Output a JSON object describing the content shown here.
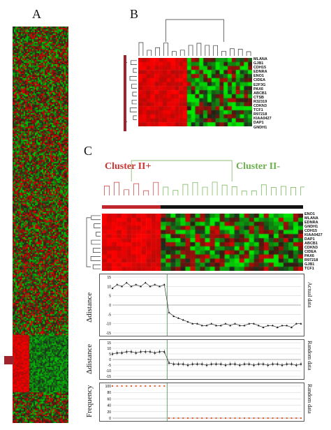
{
  "panels": {
    "a": "A",
    "b": "B",
    "c": "C"
  },
  "colors": {
    "red": "#d9262b",
    "green": "#44b244",
    "black": "#111111",
    "marker": "#a0232b",
    "cluster_pos": "#cc3333",
    "cluster_neg": "#6ab04c",
    "point_random": "#e85c2a"
  },
  "panel_b": {
    "genes": [
      "MLANA",
      "GJB1",
      "CDH15",
      "EDNRA",
      "ENO1",
      "CIDEA",
      "E2F3G",
      "PAX6",
      "ABCB1",
      "CTSB",
      "R32319",
      "CDKN3",
      "TCF1",
      "R97218",
      "KIAA0427",
      "DAP1",
      "GNDH1"
    ]
  },
  "panel_c": {
    "cluster_pos_label": "Cluster II+",
    "cluster_neg_label": "Cluster II-",
    "genes": [
      "ENO1",
      "MLANA",
      "EDNRA",
      "GNDH1",
      "CDH15",
      "KIAA0427",
      "DAP1",
      "ABCB1",
      "CDKN3",
      "CIDEA",
      "PAX6",
      "R97218",
      "GJB1",
      "TCF1"
    ]
  },
  "chart_data": [
    {
      "type": "line",
      "title": "",
      "ylabel": "Δdistance",
      "right_label": "Actual data",
      "ylim": [
        -15,
        15
      ],
      "yticks": [
        15,
        10,
        5,
        0,
        -5,
        -10,
        -15
      ],
      "series": [
        {
          "values": [
            9,
            11,
            10,
            12,
            10,
            11,
            10,
            12,
            10,
            11,
            10,
            11,
            -4,
            -6,
            -7,
            -8,
            -9,
            -10,
            -10,
            -11,
            -11,
            -10,
            -11,
            -11,
            -10,
            -11,
            -10,
            -11,
            -11,
            -10,
            -10,
            -11,
            -12,
            -11,
            -11,
            -12,
            -11,
            -11,
            -12,
            -10,
            -10
          ]
        }
      ]
    },
    {
      "type": "line",
      "title": "",
      "ylabel": "Δdistance",
      "right_label": "Random data",
      "ylim": [
        -15,
        15
      ],
      "yticks": [
        15,
        10,
        5,
        0,
        -5,
        -10,
        -15
      ],
      "series": [
        {
          "values": [
            5,
            6,
            6,
            7,
            7,
            6,
            7,
            7,
            7,
            6,
            7,
            7,
            -3,
            -4,
            -4,
            -4,
            -5,
            -4,
            -4,
            -4,
            -5,
            -4,
            -4,
            -4,
            -5,
            -4,
            -4,
            -5,
            -4,
            -4,
            -5,
            -4,
            -4,
            -5,
            -4,
            -4,
            -5,
            -4,
            -4,
            -5,
            -4
          ]
        }
      ]
    },
    {
      "type": "scatter",
      "title": "",
      "ylabel": "Frequency",
      "right_label": "Random data",
      "ylim": [
        0,
        100
      ],
      "yticks": [
        100,
        80,
        60,
        40,
        20,
        0
      ],
      "series": [
        {
          "values": [
            100,
            100,
            100,
            100,
            100,
            100,
            100,
            100,
            100,
            100,
            100,
            100,
            0,
            0,
            0,
            0,
            0,
            0,
            0,
            0,
            0,
            0,
            0,
            0,
            0,
            0,
            0,
            0,
            0,
            0,
            0,
            0,
            0,
            0,
            0,
            0,
            0,
            0,
            0,
            0,
            0
          ]
        }
      ]
    }
  ]
}
